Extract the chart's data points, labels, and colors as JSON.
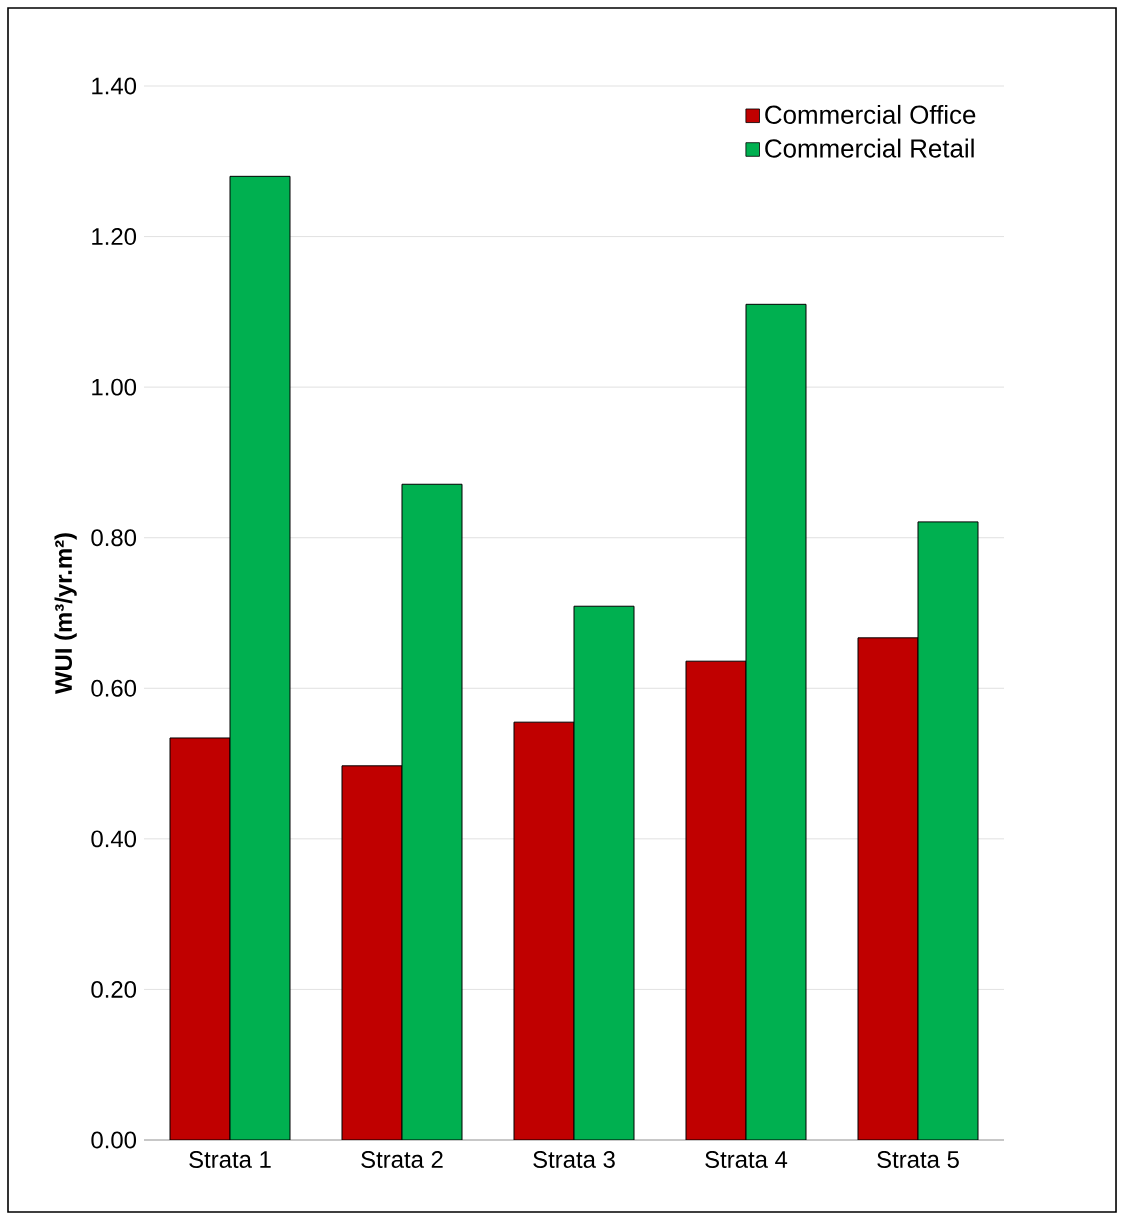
{
  "chart_data": {
    "type": "bar",
    "ylabel": "WUI (m³/yr.m²)",
    "categories": [
      "Strata 1",
      "Strata 2",
      "Strata 3",
      "Strata 4",
      "Strata 5"
    ],
    "series": [
      {
        "name": "Commercial Office",
        "color": "#c00000",
        "values": [
          0.534,
          0.497,
          0.555,
          0.636,
          0.667
        ]
      },
      {
        "name": "Commercial Retail",
        "color": "#00b050",
        "values": [
          1.28,
          0.871,
          0.709,
          1.11,
          0.821
        ]
      }
    ],
    "ylim": [
      0,
      1.4
    ],
    "yticks": [
      {
        "value": 0,
        "label": "0.00"
      },
      {
        "value": 0.2,
        "label": "0.20"
      },
      {
        "value": 0.4,
        "label": "0.40"
      },
      {
        "value": 0.6,
        "label": "0.60"
      },
      {
        "value": 0.8,
        "label": "0.80"
      },
      {
        "value": 1.0,
        "label": "1.00"
      },
      {
        "value": 1.2,
        "label": "1.20"
      },
      {
        "value": 1.4,
        "label": "1.40"
      }
    ],
    "grid": "y",
    "legend": "top right"
  }
}
